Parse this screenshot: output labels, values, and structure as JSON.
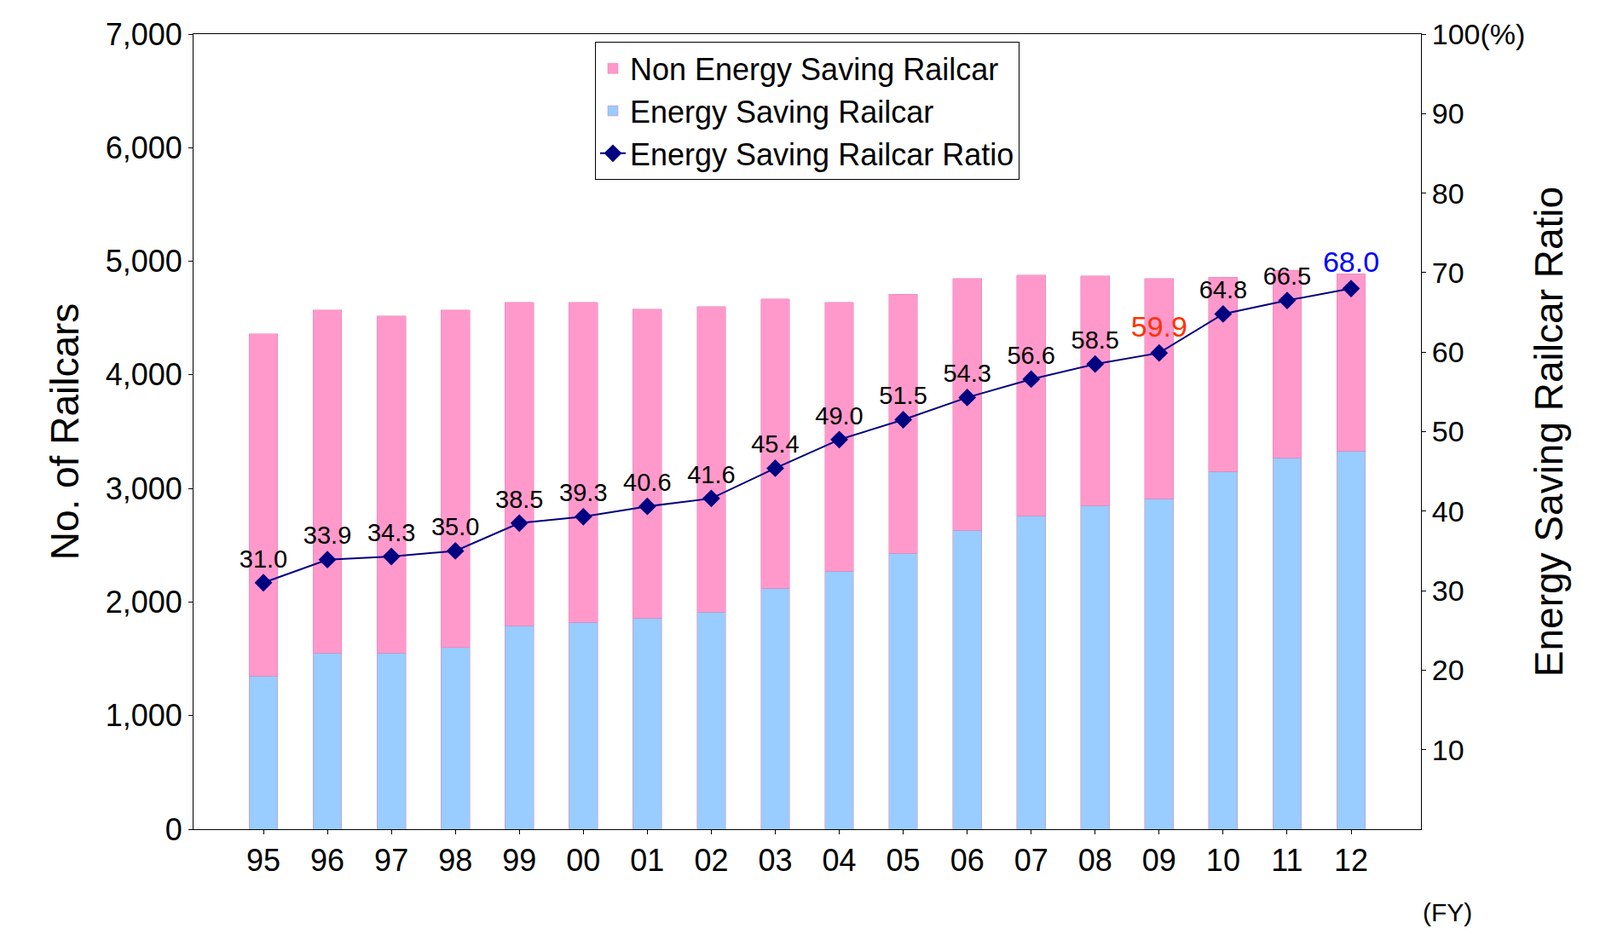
{
  "chart_data": {
    "type": "bar",
    "stacked": true,
    "categories": [
      "95",
      "96",
      "97",
      "98",
      "99",
      "00",
      "01",
      "02",
      "03",
      "04",
      "05",
      "06",
      "07",
      "08",
      "09",
      "10",
      "11",
      "12"
    ],
    "series": [
      {
        "name": "Energy Saving Railcar",
        "color": "#99ccff",
        "values": [
          1350,
          1550,
          1550,
          1600,
          1790,
          1820,
          1860,
          1910,
          2120,
          2270,
          2430,
          2630,
          2760,
          2850,
          2910,
          3150,
          3270,
          3330
        ]
      },
      {
        "name": "Non Energy Saving Railcar",
        "color": "#ff99cc",
        "values": [
          3010,
          3020,
          2970,
          2970,
          2850,
          2820,
          2720,
          2690,
          2550,
          2370,
          2280,
          2220,
          2120,
          2020,
          1940,
          1710,
          1650,
          1560
        ]
      },
      {
        "name": "Energy Saving Railcar Ratio",
        "type": "line",
        "axis": "y2",
        "color": "#000080",
        "marker": "diamond",
        "data_labels": true,
        "values": [
          31.0,
          33.9,
          34.3,
          35.0,
          38.5,
          39.3,
          40.6,
          41.6,
          45.4,
          49.0,
          51.5,
          54.3,
          56.6,
          58.5,
          59.9,
          64.8,
          66.5,
          68.0
        ],
        "value_labels": [
          "31.0",
          "33.9",
          "34.3",
          "35.0",
          "38.5",
          "39.3",
          "40.6",
          "41.6",
          "45.4",
          "49.0",
          "51.5",
          "54.3",
          "56.6",
          "58.5",
          "59.9",
          "64.8",
          "66.5",
          "68.0"
        ]
      }
    ],
    "ylabel": "No. of Railcars",
    "y2label": "Energy Saving Railcar Ratio",
    "ylim": [
      0,
      7000
    ],
    "yticks": [
      0,
      {
        "value": 1000,
        "label": "1,000"
      },
      {
        "value": 2000,
        "label": "2,000"
      },
      {
        "value": 3000,
        "label": "3,000"
      },
      {
        "value": 4000,
        "label": "4,000"
      },
      {
        "value": 5000,
        "label": "5,000"
      },
      {
        "value": 6000,
        "label": "6,000"
      },
      {
        "value": 7000,
        "label": "7,000"
      }
    ],
    "y2lim": [
      0,
      100
    ],
    "y2ticks": [
      10,
      20,
      30,
      40,
      50,
      60,
      70,
      80,
      90,
      {
        "value": 100,
        "label": "100(%)"
      }
    ],
    "legend": "top",
    "grid": false,
    "annotations": [
      {
        "text": "(FY)"
      }
    ]
  }
}
